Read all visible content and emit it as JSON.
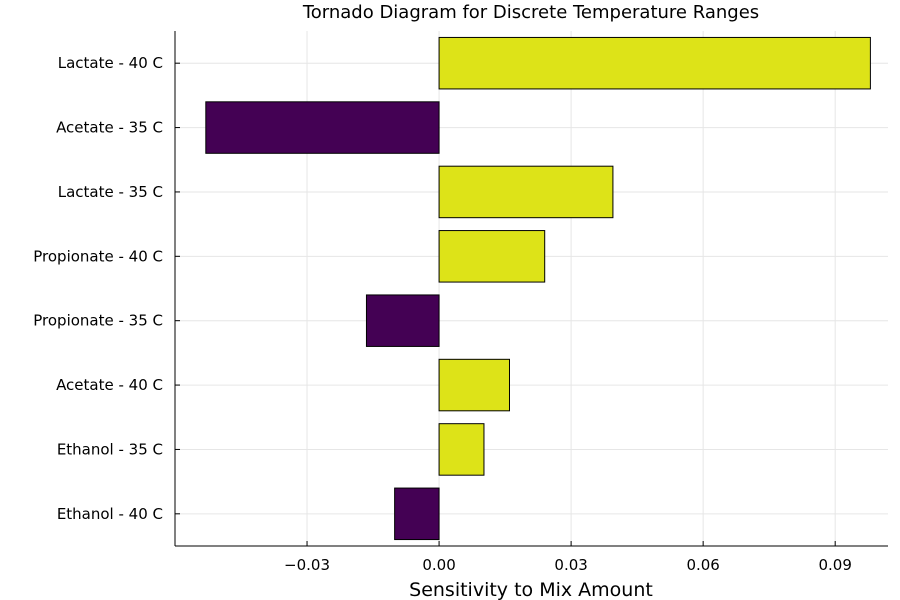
{
  "chart_data": {
    "type": "bar",
    "orientation": "horizontal",
    "title": "Tornado Diagram for Discrete Temperature Ranges",
    "xlabel": "Sensitivity to Mix Amount",
    "ylabel": "",
    "categories": [
      "Lactate - 40 C",
      "Acetate - 35 C",
      "Lactate - 35 C",
      "Propionate - 40 C",
      "Propionate - 35 C",
      "Acetate - 40 C",
      "Ethanol - 35 C",
      "Ethanol - 40 C"
    ],
    "values": [
      0.098,
      -0.053,
      0.0395,
      0.024,
      -0.0165,
      0.016,
      0.0102,
      -0.0101
    ],
    "xlim": [
      -0.06,
      0.102
    ],
    "xticks": [
      -0.03,
      0.0,
      0.03,
      0.06,
      0.09
    ],
    "xtick_labels": [
      "−0.03",
      "0.00",
      "0.03",
      "0.06",
      "0.09"
    ],
    "grid": true,
    "legend": "none",
    "colors": {
      "positive": "#dde318",
      "negative": "#440154"
    }
  }
}
